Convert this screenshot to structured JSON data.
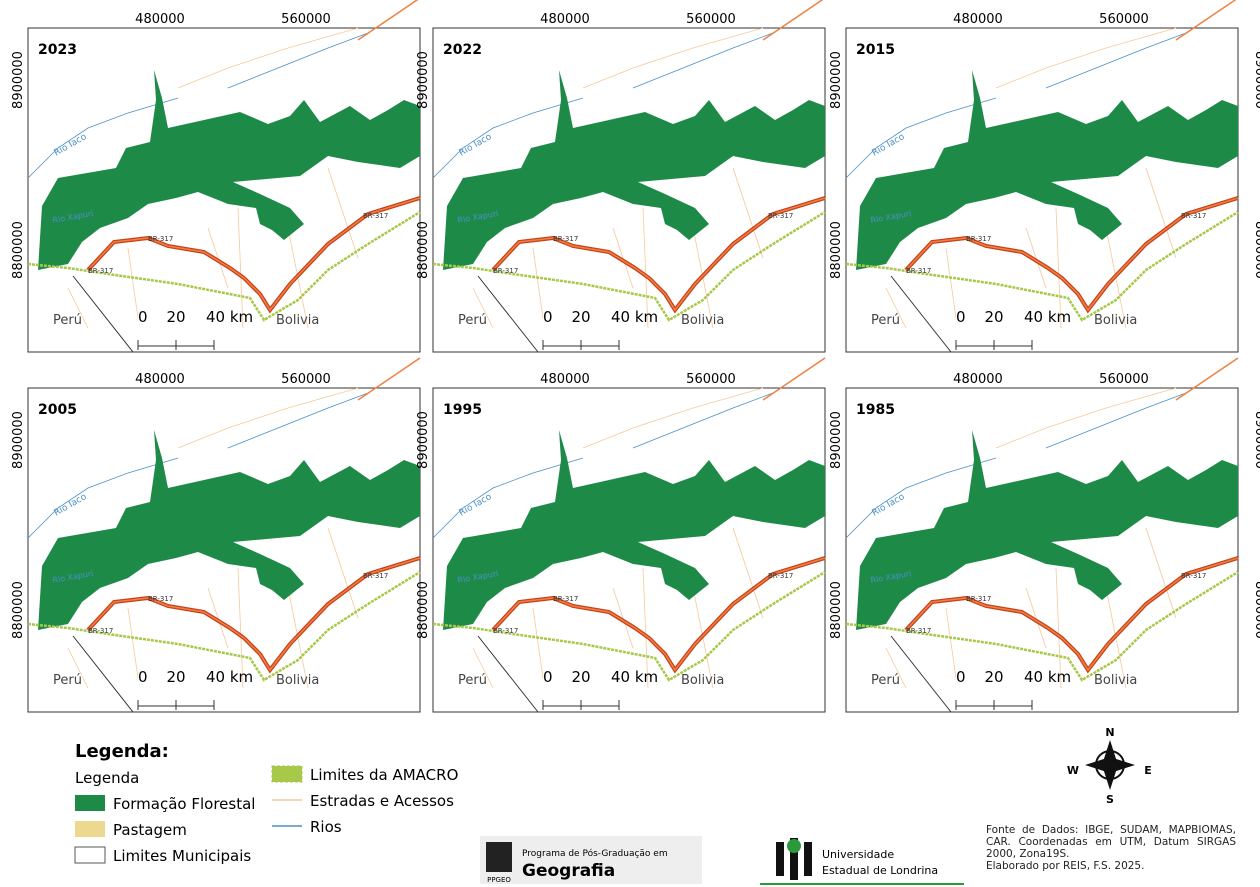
{
  "panels": [
    {
      "year": "2023"
    },
    {
      "year": "2022"
    },
    {
      "year": "2015"
    },
    {
      "year": "2005"
    },
    {
      "year": "1995"
    },
    {
      "year": "1985"
    }
  ],
  "grid_labels": {
    "x": [
      "480000",
      "560000"
    ],
    "y": [
      "8900000",
      "8800000"
    ]
  },
  "scale_bar": [
    "0",
    "20",
    "40 km"
  ],
  "place_labels": {
    "peru": "Perú",
    "bolivia": "Bolivia",
    "river_iaco": "Rio Iaco",
    "river_xapuri": "Rio Xapuri",
    "road": "BR-317"
  },
  "legend": {
    "title": "Legenda:",
    "subtitle": "Legenda",
    "items": [
      {
        "label": "Formação Florestal",
        "color": "#1e8a48"
      },
      {
        "label": "Pastagem",
        "color": "#ecd98f"
      },
      {
        "label": "Limites Municipais",
        "color": "#ffffff"
      },
      {
        "label": "Limites da AMACRO",
        "color": "#a8c84a"
      },
      {
        "label": "Estradas e Acessos",
        "color": "#f6c89a"
      },
      {
        "label": "Rios",
        "color": "#4a90c8"
      }
    ]
  },
  "north_arrow": {
    "n": "N",
    "s": "S",
    "e": "E",
    "w": "W"
  },
  "logos": {
    "ppgeo_caption": "Programa de Pós-Graduação em",
    "ppgeo_name": "Geografia",
    "ppgeo_short": "PPGEO",
    "uel_line1": "Universidade",
    "uel_line2": "Estadual de Londrina"
  },
  "source": {
    "text": "Fonte de Dados: IBGE, SUDAM, MAPBIOMAS, CAR. Coordenadas em UTM, Datum SIRGAS 2000, Zona19S.",
    "author": "Elaborado por REIS, F.S. 2025."
  }
}
